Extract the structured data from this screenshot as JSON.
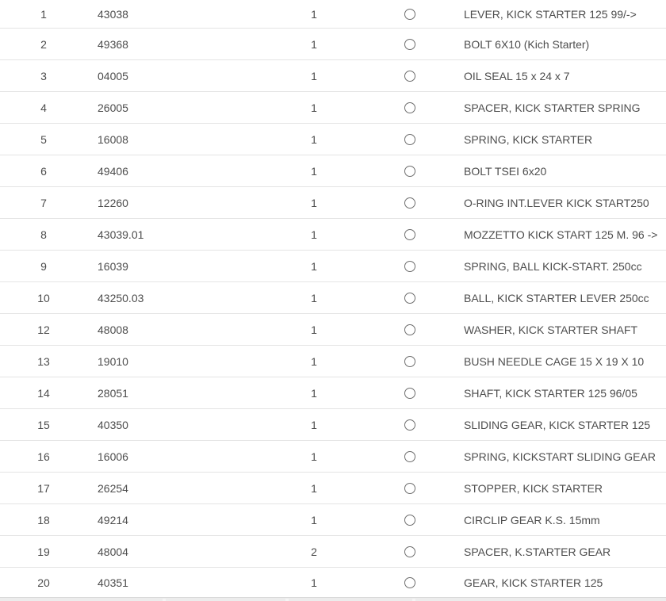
{
  "colors": {
    "text": "#4d4d4d",
    "row_separator": "#e4e4e4",
    "radio_border": "#6e6e6e",
    "bottom_band": "#ececec",
    "background": "#ffffff"
  },
  "table": {
    "rows": [
      {
        "num": "1",
        "part": "43038",
        "qty": "1",
        "desc": "LEVER, KICK STARTER 125 99/->"
      },
      {
        "num": "2",
        "part": "49368",
        "qty": "1",
        "desc": "BOLT 6X10 (Kich Starter)"
      },
      {
        "num": "3",
        "part": "04005",
        "qty": "1",
        "desc": "OIL SEAL 15 x 24 x 7"
      },
      {
        "num": "4",
        "part": "26005",
        "qty": "1",
        "desc": "SPACER, KICK STARTER SPRING"
      },
      {
        "num": "5",
        "part": "16008",
        "qty": "1",
        "desc": "SPRING, KICK STARTER"
      },
      {
        "num": "6",
        "part": "49406",
        "qty": "1",
        "desc": "BOLT TSEI 6x20"
      },
      {
        "num": "7",
        "part": "12260",
        "qty": "1",
        "desc": "O-RING INT.LEVER KICK START250"
      },
      {
        "num": "8",
        "part": "43039.01",
        "qty": "1",
        "desc": "MOZZETTO KICK START 125 M. 96 ->"
      },
      {
        "num": "9",
        "part": "16039",
        "qty": "1",
        "desc": "SPRING, BALL KICK-START. 250cc"
      },
      {
        "num": "10",
        "part": "43250.03",
        "qty": "1",
        "desc": "BALL, KICK STARTER LEVER 250cc"
      },
      {
        "num": "12",
        "part": "48008",
        "qty": "1",
        "desc": "WASHER, KICK STARTER SHAFT"
      },
      {
        "num": "13",
        "part": "19010",
        "qty": "1",
        "desc": "BUSH NEEDLE CAGE 15 X 19 X 10"
      },
      {
        "num": "14",
        "part": "28051",
        "qty": "1",
        "desc": "SHAFT, KICK STARTER 125 96/05"
      },
      {
        "num": "15",
        "part": "40350",
        "qty": "1",
        "desc": "SLIDING GEAR, KICK STARTER 125"
      },
      {
        "num": "16",
        "part": "16006",
        "qty": "1",
        "desc": "SPRING, KICKSTART SLIDING GEAR"
      },
      {
        "num": "17",
        "part": "26254",
        "qty": "1",
        "desc": "STOPPER, KICK STARTER"
      },
      {
        "num": "18",
        "part": "49214",
        "qty": "1",
        "desc": "CIRCLIP GEAR K.S. 15mm"
      },
      {
        "num": "19",
        "part": "48004",
        "qty": "2",
        "desc": "SPACER, K.STARTER GEAR"
      },
      {
        "num": "20",
        "part": "40351",
        "qty": "1",
        "desc": "GEAR, KICK STARTER 125"
      }
    ]
  }
}
